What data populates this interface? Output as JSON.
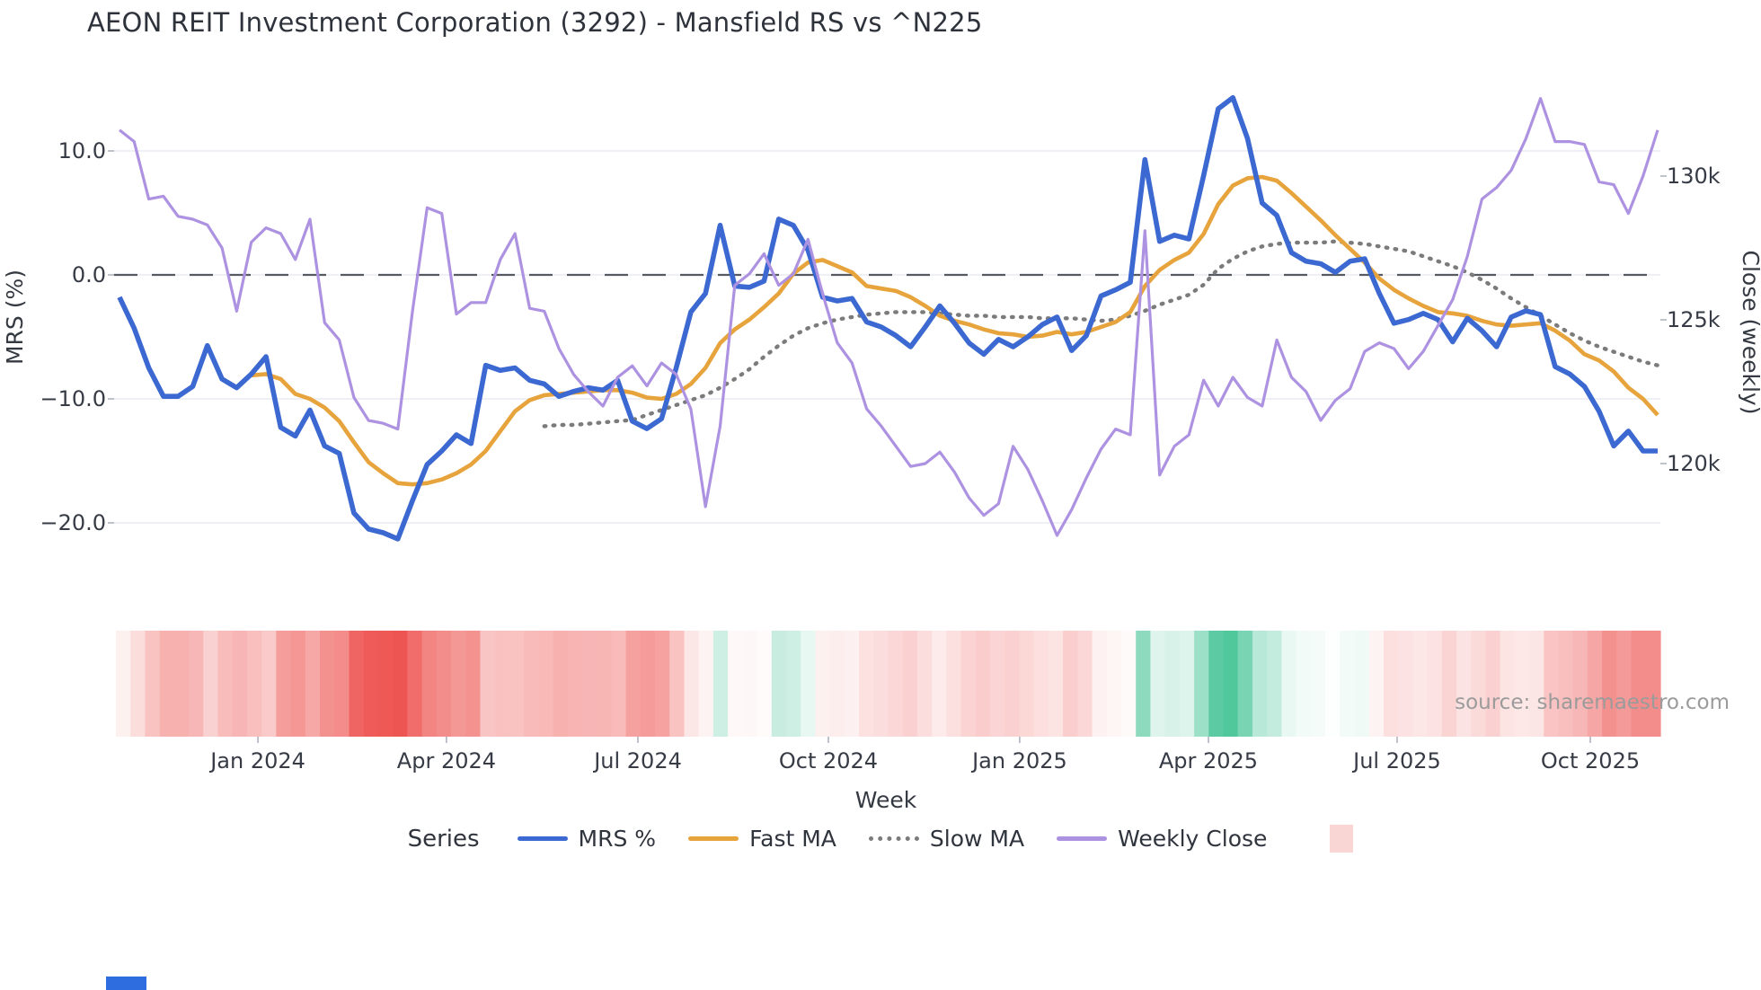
{
  "title": "AEON REIT Investment Corporation (3292) - Mansfield RS vs ^N225",
  "source_credit": "source: sharemaestro.com",
  "axes": {
    "left": {
      "title": "MRS (%)",
      "ticks": [
        {
          "value": 10,
          "label": "10.0"
        },
        {
          "value": 0,
          "label": "0.0"
        },
        {
          "value": -10,
          "label": "−10.0"
        },
        {
          "value": -20,
          "label": "−20.0"
        }
      ]
    },
    "right": {
      "title": "Close (weekly)",
      "ticks": [
        {
          "value": 130,
          "label": "130k"
        },
        {
          "value": 125,
          "label": "125k"
        },
        {
          "value": 120,
          "label": "120k"
        }
      ]
    },
    "x": {
      "title": "Week",
      "ticks": [
        {
          "week": 9.45,
          "label": "Jan 2024"
        },
        {
          "week": 22.32,
          "label": "Apr 2024"
        },
        {
          "week": 35.39,
          "label": "Jul 2024"
        },
        {
          "week": 48.39,
          "label": "Oct 2024"
        },
        {
          "week": 61.45,
          "label": "Jan 2025"
        },
        {
          "week": 74.33,
          "label": "Apr 2025"
        },
        {
          "week": 87.21,
          "label": "Jul 2025"
        },
        {
          "week": 100.4,
          "label": "Oct 2025"
        }
      ]
    }
  },
  "legend": {
    "series_label": "Series",
    "items": [
      {
        "label": "MRS %",
        "color": "#3b68d1",
        "style": "solid"
      },
      {
        "label": "Fast MA",
        "color": "#e7a33c",
        "style": "solid"
      },
      {
        "label": "Slow MA",
        "color": "#7b7b7b",
        "style": "dotted"
      },
      {
        "label": "Weekly Close",
        "color": "#ae92e2",
        "style": "solid"
      },
      {
        "label": "",
        "color": "#f9d5d4",
        "style": "heat-swatch"
      }
    ]
  },
  "chart_data": {
    "type": "line",
    "x_unit": "weekly data, Nov 2023 – Nov 2025 (106 weeks)",
    "left_ylabel": "MRS (%)",
    "right_ylabel": "Close (weekly)",
    "xlabel": "Week",
    "left_ylim": [
      -24,
      16
    ],
    "right_ylim": [
      117,
      133.5
    ],
    "zero_dashed_line": 0,
    "grid": "horizontal only",
    "legend_position": "bottom center",
    "series": [
      {
        "name": "MRS %",
        "axis": "left",
        "color": "#3b68d1",
        "style": "solid",
        "values": [
          -1.8,
          -4.3,
          -7.5,
          -9.8,
          -9.8,
          -9.0,
          -5.7,
          -8.4,
          -9.1,
          -8.0,
          -6.6,
          -12.3,
          -13.0,
          -10.9,
          -13.8,
          -14.4,
          -19.2,
          -20.5,
          -20.8,
          -21.3,
          -18.2,
          -15.3,
          -14.2,
          -12.9,
          -13.6,
          -7.3,
          -7.7,
          -7.5,
          -8.5,
          -8.8,
          -9.8,
          -9.4,
          -9.1,
          -9.3,
          -8.5,
          -11.8,
          -12.4,
          -11.6,
          -7.5,
          -3.0,
          -1.5,
          4.0,
          -0.9,
          -1.0,
          -0.5,
          4.5,
          4.0,
          2.0,
          -1.8,
          -2.1,
          -1.9,
          -3.8,
          -4.2,
          -4.9,
          -5.8,
          -4.2,
          -2.5,
          -3.9,
          -5.5,
          -6.4,
          -5.2,
          -5.8,
          -5.0,
          -4.0,
          -3.4,
          -6.1,
          -4.9,
          -1.7,
          -1.2,
          -0.6,
          9.3,
          2.7,
          3.2,
          2.9,
          8.0,
          13.4,
          14.3,
          11.0,
          5.8,
          4.8,
          1.8,
          1.1,
          0.9,
          0.2,
          1.1,
          1.3,
          -1.5,
          -3.9,
          -3.6,
          -3.1,
          -3.6,
          -5.4,
          -3.5,
          -4.5,
          -5.8,
          -3.4,
          -2.9,
          -3.2,
          -7.4,
          -8.0,
          -9.0,
          -11.0,
          -13.8,
          -12.6,
          -14.2,
          -14.2
        ]
      },
      {
        "name": "Fast MA",
        "axis": "left",
        "color": "#e7a33c",
        "style": "solid",
        "values": [
          null,
          null,
          null,
          null,
          null,
          null,
          null,
          null,
          null,
          -8.1,
          -8.0,
          -8.4,
          -9.6,
          -10.0,
          -10.7,
          -11.8,
          -13.5,
          -15.1,
          -16.0,
          -16.8,
          -16.9,
          -16.8,
          -16.5,
          -16.0,
          -15.3,
          -14.2,
          -12.6,
          -11.0,
          -10.1,
          -9.7,
          -9.6,
          -9.5,
          -9.4,
          -9.3,
          -9.3,
          -9.5,
          -9.9,
          -10.0,
          -9.6,
          -8.8,
          -7.5,
          -5.5,
          -4.4,
          -3.6,
          -2.6,
          -1.5,
          0.1,
          1.0,
          1.2,
          0.7,
          0.2,
          -0.9,
          -1.1,
          -1.3,
          -1.8,
          -2.5,
          -3.3,
          -3.7,
          -4.0,
          -4.4,
          -4.7,
          -4.8,
          -5.0,
          -4.9,
          -4.6,
          -4.8,
          -4.6,
          -4.2,
          -3.8,
          -3.0,
          -0.9,
          0.4,
          1.2,
          1.8,
          3.3,
          5.7,
          7.2,
          7.8,
          7.9,
          7.6,
          6.6,
          5.5,
          4.4,
          3.2,
          2.1,
          1.0,
          -0.3,
          -1.2,
          -1.9,
          -2.5,
          -3.0,
          -3.1,
          -3.3,
          -3.7,
          -4.0,
          -4.1,
          -4.0,
          -3.9,
          -4.5,
          -5.3,
          -6.4,
          -6.9,
          -7.8,
          -9.1,
          -10.0,
          -11.3
        ]
      },
      {
        "name": "Slow MA",
        "axis": "left",
        "color": "#7b7b7b",
        "style": "dotted",
        "values": [
          null,
          null,
          null,
          null,
          null,
          null,
          null,
          null,
          null,
          null,
          null,
          null,
          null,
          null,
          null,
          null,
          null,
          null,
          null,
          null,
          null,
          null,
          null,
          null,
          null,
          null,
          null,
          null,
          null,
          -12.2,
          -12.1,
          -12.1,
          -12.0,
          -11.9,
          -11.8,
          -11.7,
          -11.3,
          -10.9,
          -10.5,
          -10.1,
          -9.7,
          -9.1,
          -8.4,
          -7.6,
          -6.6,
          -5.7,
          -4.9,
          -4.3,
          -3.9,
          -3.6,
          -3.4,
          -3.2,
          -3.1,
          -3.0,
          -3.0,
          -3.0,
          -3.1,
          -3.2,
          -3.3,
          -3.3,
          -3.4,
          -3.4,
          -3.4,
          -3.5,
          -3.5,
          -3.5,
          -3.6,
          -3.7,
          -3.6,
          -3.3,
          -2.9,
          -2.4,
          -2.0,
          -1.6,
          -0.8,
          0.5,
          1.3,
          1.9,
          2.3,
          2.5,
          2.6,
          2.6,
          2.6,
          2.7,
          2.6,
          2.5,
          2.3,
          2.1,
          1.9,
          1.5,
          1.1,
          0.7,
          0.2,
          -0.4,
          -1.1,
          -1.9,
          -2.6,
          -3.3,
          -4.0,
          -4.7,
          -5.3,
          -5.8,
          -6.2,
          -6.6,
          -7.0,
          -7.3
        ]
      },
      {
        "name": "Weekly Close",
        "axis": "right",
        "color": "#ae92e2",
        "style": "solid",
        "unit": "k (JPY, ^N225)",
        "values": [
          131.6,
          131.2,
          129.2,
          129.3,
          128.6,
          128.5,
          128.3,
          127.5,
          125.3,
          127.7,
          128.2,
          128.0,
          127.1,
          128.5,
          124.9,
          124.3,
          122.3,
          121.5,
          121.4,
          121.2,
          125.3,
          128.9,
          128.7,
          125.2,
          125.6,
          125.6,
          127.1,
          128.0,
          125.4,
          125.3,
          124.0,
          123.1,
          122.5,
          122.0,
          123.0,
          123.4,
          122.7,
          123.5,
          123.1,
          121.9,
          118.5,
          121.3,
          126.2,
          126.6,
          127.3,
          126.2,
          126.6,
          127.8,
          125.9,
          124.2,
          123.5,
          121.9,
          121.3,
          120.6,
          119.9,
          120.0,
          120.4,
          119.7,
          118.8,
          118.2,
          118.6,
          120.6,
          119.8,
          118.7,
          117.5,
          118.4,
          119.5,
          120.5,
          121.2,
          121.0,
          128.1,
          119.6,
          120.6,
          121.0,
          122.9,
          122.0,
          123.0,
          122.3,
          122.0,
          124.3,
          123.0,
          122.5,
          121.5,
          122.2,
          122.6,
          123.9,
          124.2,
          124.0,
          123.3,
          123.9,
          124.8,
          125.7,
          127.2,
          129.2,
          129.6,
          130.2,
          131.3,
          132.7,
          131.2,
          131.2,
          131.1,
          129.8,
          129.7,
          128.7,
          130.0,
          131.6
        ]
      }
    ],
    "heatmap": {
      "description": "weekly heat strip below chart: red = negative MRS, green = positive MRS, intensity scales with magnitude",
      "derived_from": "MRS %",
      "negative_color": "#ed5350",
      "positive_color": "#48c497",
      "full_red_at": -21.5,
      "full_green_at": 15
    }
  }
}
